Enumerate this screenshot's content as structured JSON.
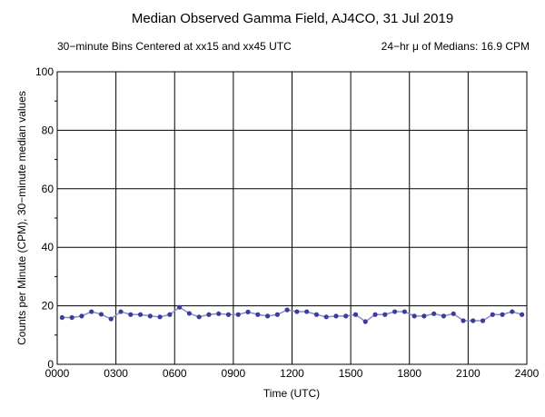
{
  "chart_data": {
    "type": "line",
    "title": "Median Observed Gamma Field, AJ4CO, 31 Jul 2019",
    "subtitle_left": "30−minute Bins Centered at xx15 and xx45 UTC",
    "subtitle_right": "24−hr μ of Medians: 16.9 CPM",
    "xlabel": "Time (UTC)",
    "ylabel": "Counts per Minute (CPM), 30−minute median values",
    "xlim": [
      0,
      24
    ],
    "ylim": [
      0,
      100
    ],
    "x_tick_labels": [
      "0000",
      "0300",
      "0600",
      "0900",
      "1200",
      "1500",
      "1800",
      "2100",
      "2400"
    ],
    "y_tick_labels": [
      "0",
      "20",
      "40",
      "60",
      "80",
      "100"
    ],
    "grid": true,
    "series_color": "#3c3c9c",
    "line_color": "#8c8cc8",
    "x": [
      0.25,
      0.75,
      1.25,
      1.75,
      2.25,
      2.75,
      3.25,
      3.75,
      4.25,
      4.75,
      5.25,
      5.75,
      6.25,
      6.75,
      7.25,
      7.75,
      8.25,
      8.75,
      9.25,
      9.75,
      10.25,
      10.75,
      11.25,
      11.75,
      12.25,
      12.75,
      13.25,
      13.75,
      14.25,
      14.75,
      15.25,
      15.75,
      16.25,
      16.75,
      17.25,
      17.75,
      18.25,
      18.75,
      19.25,
      19.75,
      20.25,
      20.75,
      21.25,
      21.75,
      22.25,
      22.75,
      23.25,
      23.75
    ],
    "values": [
      16.0,
      16.0,
      16.5,
      18.0,
      17.1,
      15.5,
      18.0,
      17.0,
      17.0,
      16.5,
      16.2,
      17.0,
      19.5,
      17.4,
      16.2,
      17.0,
      17.3,
      17.0,
      17.0,
      17.9,
      17.0,
      16.5,
      17.0,
      18.6,
      18.0,
      18.0,
      17.0,
      16.2,
      16.5,
      16.5,
      17.0,
      14.6,
      17.0,
      17.0,
      18.0,
      18.0,
      16.5,
      16.5,
      17.3,
      16.5,
      17.3,
      14.9,
      14.9,
      14.9,
      17.0,
      17.0,
      18.0,
      17.0
    ]
  }
}
